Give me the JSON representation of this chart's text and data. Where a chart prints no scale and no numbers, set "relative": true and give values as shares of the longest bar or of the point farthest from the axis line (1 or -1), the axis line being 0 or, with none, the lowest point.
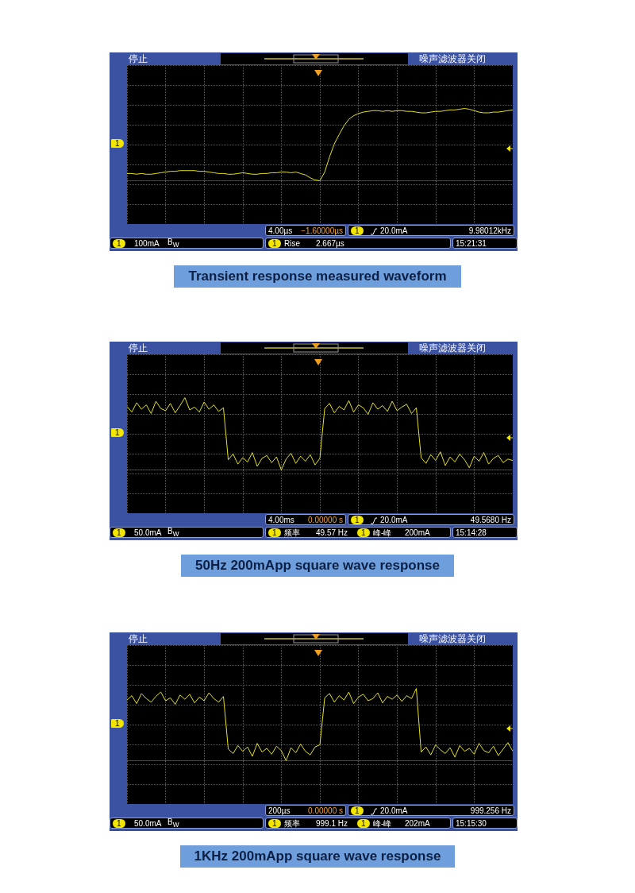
{
  "chart_data": [
    {
      "type": "line",
      "title": "Transient response measured waveform",
      "relative": true,
      "grid": true,
      "tick_labels": false,
      "color": "#e6e21e",
      "annotations": [
        "停止",
        "噪声滤波器关闭",
        "1",
        "100mA",
        "B$_{W}$",
        "4.00µs",
        "−1.60000µs",
        "20.0mA",
        "9.98012kHz",
        "Rise",
        "2.667µs",
        "15:21:31"
      ],
      "categories": [
        null,
        null,
        null,
        null,
        null,
        null,
        null,
        null,
        null,
        null,
        null,
        null,
        null,
        null,
        null,
        null,
        null,
        null,
        null,
        null,
        null,
        null,
        null,
        null,
        null,
        null,
        null,
        null,
        null,
        null,
        null,
        null,
        null,
        null,
        null,
        null,
        null,
        null,
        null,
        null,
        null,
        null,
        null,
        null,
        null,
        null,
        null,
        null,
        null,
        null,
        null,
        null,
        null,
        null,
        null,
        null,
        null,
        null,
        null,
        null,
        null,
        null,
        null,
        null,
        null,
        null,
        null,
        null,
        null,
        null,
        null,
        null,
        null,
        null,
        null,
        null,
        null,
        null,
        null,
        null,
        null
      ],
      "values": [
        0.1,
        0.1,
        0.09,
        0.1,
        0.09,
        0.09,
        0.1,
        0.11,
        0.12,
        0.13,
        0.13,
        0.14,
        0.14,
        0.14,
        0.14,
        0.13,
        0.13,
        0.12,
        0.11,
        0.1,
        0.1,
        0.09,
        0.09,
        0.1,
        0.11,
        0.1,
        0.09,
        0.09,
        0.1,
        0.1,
        0.11,
        0.11,
        0.12,
        0.12,
        0.11,
        0.12,
        0.1,
        0.08,
        0.04,
        0.01,
        0.0,
        0.12,
        0.33,
        0.51,
        0.64,
        0.76,
        0.85,
        0.9,
        0.93,
        0.95,
        0.96,
        0.97,
        0.97,
        0.96,
        0.97,
        0.96,
        0.97,
        0.97,
        0.96,
        0.96,
        0.95,
        0.94,
        0.94,
        0.95,
        0.96,
        0.96,
        0.97,
        0.98,
        0.98,
        0.99,
        1.0,
        0.99,
        0.97,
        0.95,
        0.94,
        0.94,
        0.95,
        0.95,
        0.96,
        0.97,
        0.98
      ]
    },
    {
      "type": "line",
      "title": "50Hz 200mApp square wave response",
      "relative": true,
      "grid": true,
      "tick_labels": false,
      "color": "#e6e21e",
      "annotations": [
        "停止",
        "噪声滤波器关闭",
        "1",
        "50.0mA",
        "B$_{W}$",
        "4.00ms",
        "0.00000 s",
        "20.0mA",
        "49.5680 Hz",
        "频率",
        "49.57 Hz",
        "峰-峰",
        "200mA",
        "15:14:28"
      ],
      "categories": [
        null,
        null,
        null,
        null,
        null,
        null,
        null,
        null,
        null,
        null,
        null,
        null,
        null,
        null,
        null,
        null,
        null,
        null,
        null,
        null,
        null,
        null,
        null,
        null,
        null,
        null,
        null,
        null,
        null,
        null,
        null,
        null,
        null,
        null,
        null,
        null,
        null,
        null,
        null,
        null,
        null,
        null,
        null,
        null,
        null,
        null,
        null,
        null,
        null,
        null,
        null,
        null,
        null,
        null,
        null,
        null,
        null,
        null,
        null,
        null,
        null,
        null,
        null,
        null,
        null,
        null,
        null,
        null,
        null,
        null,
        null,
        null,
        null,
        null,
        null,
        null,
        null,
        null,
        null,
        null,
        null
      ],
      "values": [
        0.88,
        0.8,
        0.93,
        0.84,
        0.9,
        0.78,
        0.95,
        0.85,
        0.82,
        0.92,
        0.79,
        0.89,
        1.0,
        0.83,
        0.87,
        0.8,
        0.94,
        0.84,
        0.9,
        0.81,
        0.86,
        0.14,
        0.22,
        0.08,
        0.17,
        0.11,
        0.24,
        0.05,
        0.16,
        0.2,
        0.1,
        0.18,
        0.0,
        0.15,
        0.23,
        0.09,
        0.19,
        0.12,
        0.21,
        0.07,
        0.16,
        0.85,
        0.92,
        0.79,
        0.88,
        0.83,
        0.96,
        0.8,
        0.9,
        0.86,
        0.77,
        0.93,
        0.84,
        0.89,
        0.81,
        0.95,
        0.82,
        0.87,
        0.91,
        0.78,
        0.86,
        0.17,
        0.09,
        0.21,
        0.13,
        0.25,
        0.06,
        0.18,
        0.11,
        0.22,
        0.14,
        0.03,
        0.19,
        0.12,
        0.24,
        0.08,
        0.16,
        0.2,
        0.1,
        0.15,
        0.13
      ]
    },
    {
      "type": "line",
      "title": "1KHz 200mApp square wave response",
      "relative": true,
      "grid": true,
      "tick_labels": false,
      "color": "#e6e21e",
      "annotations": [
        "停止",
        "噪声滤波器关闭",
        "1",
        "50.0mA",
        "B$_{W}$",
        "200µs",
        "0.00000 s",
        "20.0mA",
        "999.256 Hz",
        "频率",
        "999.1 Hz",
        "峰-峰",
        "202mA",
        "15:15:30"
      ],
      "categories": [
        null,
        null,
        null,
        null,
        null,
        null,
        null,
        null,
        null,
        null,
        null,
        null,
        null,
        null,
        null,
        null,
        null,
        null,
        null,
        null,
        null,
        null,
        null,
        null,
        null,
        null,
        null,
        null,
        null,
        null,
        null,
        null,
        null,
        null,
        null,
        null,
        null,
        null,
        null,
        null,
        null,
        null,
        null,
        null,
        null,
        null,
        null,
        null,
        null,
        null,
        null,
        null,
        null,
        null,
        null,
        null,
        null,
        null,
        null,
        null,
        null,
        null,
        null,
        null,
        null,
        null,
        null,
        null,
        null,
        null,
        null,
        null,
        null,
        null,
        null,
        null,
        null,
        null,
        null,
        null,
        null
      ],
      "values": [
        0.84,
        0.9,
        0.79,
        0.93,
        0.86,
        0.81,
        0.89,
        0.95,
        0.83,
        0.87,
        0.78,
        0.91,
        0.85,
        0.92,
        0.8,
        0.88,
        0.83,
        0.94,
        0.86,
        0.81,
        0.89,
        0.16,
        0.1,
        0.21,
        0.13,
        0.19,
        0.06,
        0.24,
        0.12,
        0.17,
        0.09,
        0.2,
        0.14,
        0.0,
        0.18,
        0.11,
        0.23,
        0.13,
        0.08,
        0.19,
        0.22,
        0.87,
        0.93,
        0.81,
        0.9,
        0.84,
        0.95,
        0.79,
        0.88,
        0.92,
        0.83,
        0.86,
        0.94,
        0.8,
        0.89,
        0.85,
        0.91,
        0.82,
        0.9,
        0.86,
        1.0,
        0.12,
        0.19,
        0.08,
        0.22,
        0.15,
        0.1,
        0.18,
        0.05,
        0.21,
        0.13,
        0.17,
        0.09,
        0.24,
        0.14,
        0.11,
        0.2,
        0.07,
        0.16,
        0.25,
        0.13
      ]
    }
  ]
}
